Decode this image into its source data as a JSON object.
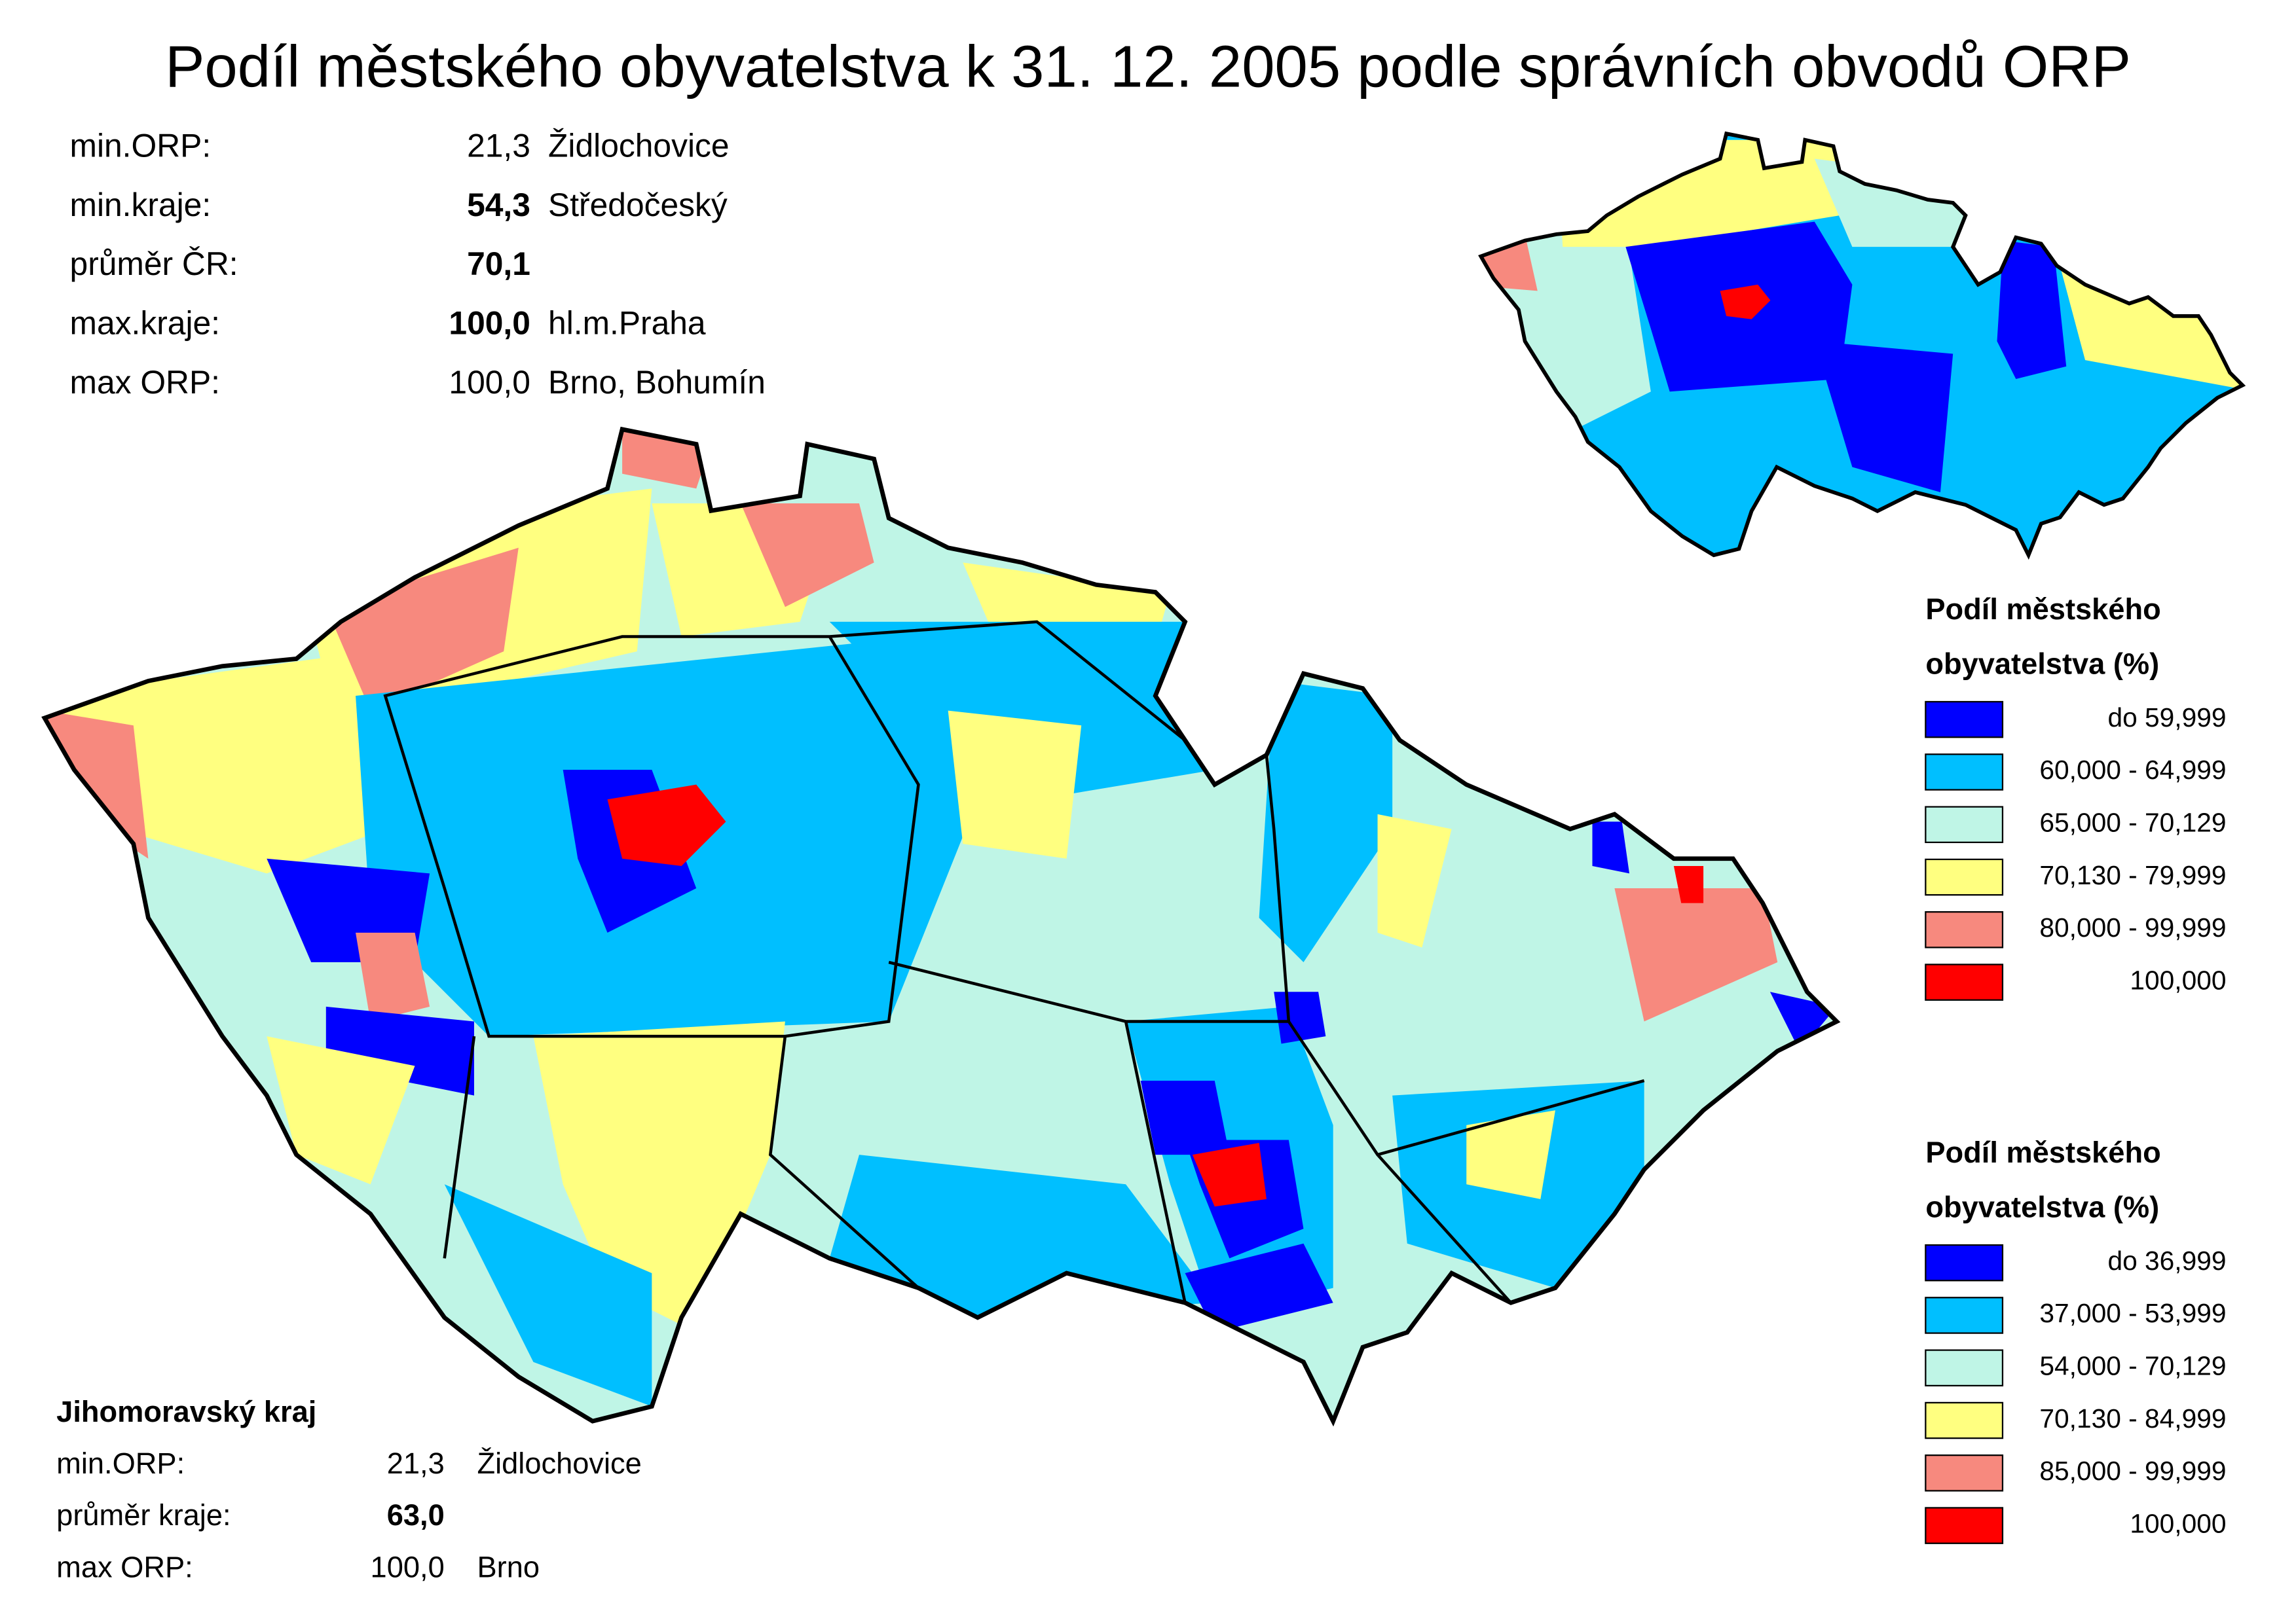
{
  "title": "Podíl městského obyvatelstva k 31. 12. 2005 podle správních obvodů ORP",
  "summary": {
    "rows": [
      {
        "label": "min.ORP:",
        "value": "21,3",
        "note": "Židlochovice",
        "bold": false
      },
      {
        "label": "min.kraje:",
        "value": "54,3",
        "note": "Středočeský",
        "bold": true
      },
      {
        "label": "průměr ČR:",
        "value": "70,1",
        "bold": true
      },
      {
        "label": "max.kraje:",
        "value": "100,0",
        "note": "hl.m.Praha",
        "bold": true
      },
      {
        "label": "max ORP:",
        "value": "100,0",
        "note": "Brno, Bohumín",
        "bold": false
      }
    ]
  },
  "legend_inset": {
    "title": [
      "Podíl městského",
      "obyvatelstva (%)"
    ],
    "items": [
      {
        "label": "do 59,999",
        "color": "#0000ff"
      },
      {
        "label": "60,000 - 64,999",
        "color": "#00bfff"
      },
      {
        "label": "65,000 - 70,129",
        "color": "#bff5e6"
      },
      {
        "label": "70,130 - 79,999",
        "color": "#ffff80"
      },
      {
        "label": "80,000 - 99,999",
        "color": "#f7897e"
      },
      {
        "label": "100,000",
        "color": "#ff0000"
      }
    ]
  },
  "legend_main": {
    "title": [
      "Podíl městského",
      "obyvatelstva (%)"
    ],
    "items": [
      {
        "label": "do 36,999",
        "color": "#0000ff"
      },
      {
        "label": "37,000 - 53,999",
        "color": "#00bfff"
      },
      {
        "label": "54,000 - 70,129",
        "color": "#bff5e6"
      },
      {
        "label": "70,130 - 84,999",
        "color": "#ffff80"
      },
      {
        "label": "85,000 - 99,999",
        "color": "#f7897e"
      },
      {
        "label": "100,000",
        "color": "#ff0000"
      }
    ]
  },
  "region_summary": {
    "title": "Jihomoravský kraj",
    "rows": [
      {
        "label": "min.ORP:",
        "value": "21,3",
        "note": "Židlochovice",
        "bold": false
      },
      {
        "label": "průměr kraje:",
        "value": "63,0",
        "bold": true
      },
      {
        "label": "max ORP:",
        "value": "100,0",
        "note": "Brno",
        "bold": false
      }
    ]
  }
}
